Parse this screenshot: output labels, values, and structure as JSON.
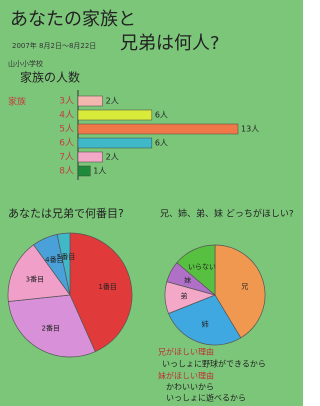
{
  "header": {
    "title_line1": "あなたの家族と",
    "title_line2": "兄弟は何人?",
    "date": "2007年 8月2日～8月22日",
    "school": "山小小学校"
  },
  "chart_data": [
    {
      "type": "bar",
      "title": "家族の人数",
      "axis_label": "家族",
      "categories": [
        "3人",
        "4人",
        "5人",
        "6人",
        "7人",
        "8人"
      ],
      "values": [
        2,
        6,
        13,
        6,
        2,
        1
      ],
      "value_labels": [
        "2人",
        "6人",
        "13人",
        "6人",
        "2人",
        "1人"
      ],
      "colors": [
        "#f4b7b0",
        "#d8ea3a",
        "#f07848",
        "#3fb8c8",
        "#f4a8c8",
        "#1e8a3a"
      ]
    },
    {
      "type": "pie",
      "title": "あなたは兄弟で何番目?",
      "categories": [
        "1番目",
        "2番目",
        "3番目",
        "4番目",
        "5番目"
      ],
      "values": [
        13,
        9,
        5,
        2,
        1
      ],
      "colors": [
        "#e03a3a",
        "#d890d8",
        "#f0a0c8",
        "#4aa0d8",
        "#40b8c8"
      ]
    },
    {
      "type": "pie",
      "title": "兄、姉、弟、妹 どっちがほしい?",
      "categories": [
        "兄",
        "姉",
        "弟",
        "妹",
        "いらない"
      ],
      "values": [
        12,
        8,
        3,
        2,
        4
      ],
      "colors": [
        "#f09850",
        "#3fa8e0",
        "#f4a8c8",
        "#b070c8",
        "#58c040"
      ]
    }
  ],
  "notes": {
    "reason1_title": "兄がほしい理由",
    "reason1": "いっしょに野球ができるから",
    "reason2_title": "妹がほしい理由",
    "reason2a": "かわいいから",
    "reason2b": "いっしょに遊べるから"
  }
}
